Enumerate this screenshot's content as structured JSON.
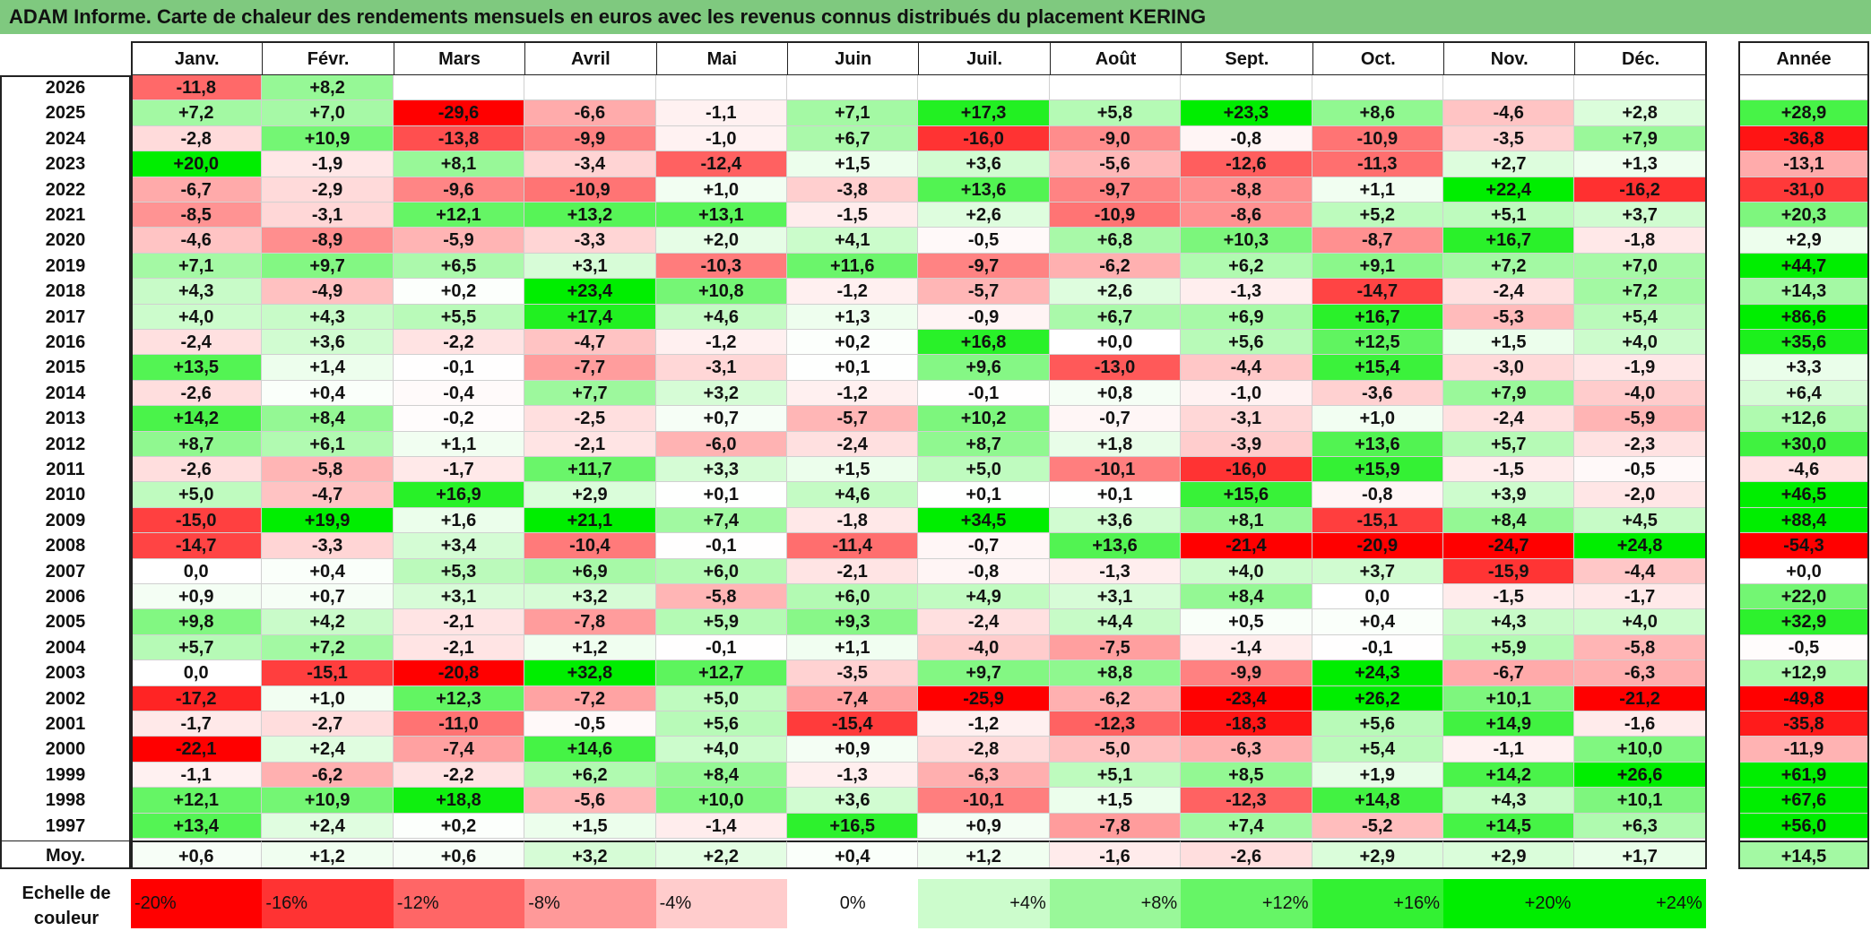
{
  "title": "ADAM Informe. Carte de chaleur des rendements mensuels en euros avec les revenus connus distribués du placement KERING",
  "chart_data": {
    "type": "heatmap",
    "months": [
      "Janv.",
      "Févr.",
      "Mars",
      "Avril",
      "Mai",
      "Juin",
      "Juil.",
      "Août",
      "Sept.",
      "Oct.",
      "Nov.",
      "Déc."
    ],
    "annual_header": "Année",
    "years": [
      "2026",
      "2025",
      "2024",
      "2023",
      "2022",
      "2021",
      "2020",
      "2019",
      "2018",
      "2017",
      "2016",
      "2015",
      "2014",
      "2013",
      "2012",
      "2011",
      "2010",
      "2009",
      "2008",
      "2007",
      "2006",
      "2005",
      "2004",
      "2003",
      "2002",
      "2001",
      "2000",
      "1999",
      "1998",
      "1997"
    ],
    "values": [
      [
        "-11,8",
        "+8,2",
        "",
        "",
        "",
        "",
        "",
        "",
        "",
        "",
        "",
        ""
      ],
      [
        "+7,2",
        "+7,0",
        "-29,6",
        "-6,6",
        "-1,1",
        "+7,1",
        "+17,3",
        "+5,8",
        "+23,3",
        "+8,6",
        "-4,6",
        "+2,8"
      ],
      [
        "-2,8",
        "+10,9",
        "-13,8",
        "-9,9",
        "-1,0",
        "+6,7",
        "-16,0",
        "-9,0",
        "-0,8",
        "-10,9",
        "-3,5",
        "+7,9"
      ],
      [
        "+20,0",
        "-1,9",
        "+8,1",
        "-3,4",
        "-12,4",
        "+1,5",
        "+3,6",
        "-5,6",
        "-12,6",
        "-11,3",
        "+2,7",
        "+1,3"
      ],
      [
        "-6,7",
        "-2,9",
        "-9,6",
        "-10,9",
        "+1,0",
        "-3,8",
        "+13,6",
        "-9,7",
        "-8,8",
        "+1,1",
        "+22,4",
        "-16,2"
      ],
      [
        "-8,5",
        "-3,1",
        "+12,1",
        "+13,2",
        "+13,1",
        "-1,5",
        "+2,6",
        "-10,9",
        "-8,6",
        "+5,2",
        "+5,1",
        "+3,7"
      ],
      [
        "-4,6",
        "-8,9",
        "-5,9",
        "-3,3",
        "+2,0",
        "+4,1",
        "-0,5",
        "+6,8",
        "+10,3",
        "-8,7",
        "+16,7",
        "-1,8"
      ],
      [
        "+7,1",
        "+9,7",
        "+6,5",
        "+3,1",
        "-10,3",
        "+11,6",
        "-9,7",
        "-6,2",
        "+6,2",
        "+9,1",
        "+7,2",
        "+7,0"
      ],
      [
        "+4,3",
        "-4,9",
        "+0,2",
        "+23,4",
        "+10,8",
        "-1,2",
        "-5,7",
        "+2,6",
        "-1,3",
        "-14,7",
        "-2,4",
        "+7,2"
      ],
      [
        "+4,0",
        "+4,3",
        "+5,5",
        "+17,4",
        "+4,6",
        "+1,3",
        "-0,9",
        "+6,7",
        "+6,9",
        "+16,7",
        "-5,3",
        "+5,4"
      ],
      [
        "-2,4",
        "+3,6",
        "-2,2",
        "-4,7",
        "-1,2",
        "+0,2",
        "+16,8",
        "+0,0",
        "+5,6",
        "+12,5",
        "+1,5",
        "+4,0"
      ],
      [
        "+13,5",
        "+1,4",
        "-0,1",
        "-7,7",
        "-3,1",
        "+0,1",
        "+9,6",
        "-13,0",
        "-4,4",
        "+15,4",
        "-3,0",
        "-1,9"
      ],
      [
        "-2,6",
        "+0,4",
        "-0,4",
        "+7,7",
        "+3,2",
        "-1,2",
        "-0,1",
        "+0,8",
        "-1,0",
        "-3,6",
        "+7,9",
        "-4,0"
      ],
      [
        "+14,2",
        "+8,4",
        "-0,2",
        "-2,5",
        "+0,7",
        "-5,7",
        "+10,2",
        "-0,7",
        "-3,1",
        "+1,0",
        "-2,4",
        "-5,9"
      ],
      [
        "+8,7",
        "+6,1",
        "+1,1",
        "-2,1",
        "-6,0",
        "-2,4",
        "+8,7",
        "+1,8",
        "-3,9",
        "+13,6",
        "+5,7",
        "-2,3"
      ],
      [
        "-2,6",
        "-5,8",
        "-1,7",
        "+11,7",
        "+3,3",
        "+1,5",
        "+5,0",
        "-10,1",
        "-16,0",
        "+15,9",
        "-1,5",
        "-0,5"
      ],
      [
        "+5,0",
        "-4,7",
        "+16,9",
        "+2,9",
        "+0,1",
        "+4,6",
        "+0,1",
        "+0,1",
        "+15,6",
        "-0,8",
        "+3,9",
        "-2,0"
      ],
      [
        "-15,0",
        "+19,9",
        "+1,6",
        "+21,1",
        "+7,4",
        "-1,8",
        "+34,5",
        "+3,6",
        "+8,1",
        "-15,1",
        "+8,4",
        "+4,5"
      ],
      [
        "-14,7",
        "-3,3",
        "+3,4",
        "-10,4",
        "-0,1",
        "-11,4",
        "-0,7",
        "+13,6",
        "-21,4",
        "-20,9",
        "-24,7",
        "+24,8"
      ],
      [
        "0,0",
        "+0,4",
        "+5,3",
        "+6,9",
        "+6,0",
        "-2,1",
        "-0,8",
        "-1,3",
        "+4,0",
        "+3,7",
        "-15,9",
        "-4,4"
      ],
      [
        "+0,9",
        "+0,7",
        "+3,1",
        "+3,2",
        "-5,8",
        "+6,0",
        "+4,9",
        "+3,1",
        "+8,4",
        "0,0",
        "-1,5",
        "-1,7"
      ],
      [
        "+9,8",
        "+4,2",
        "-2,1",
        "-7,8",
        "+5,9",
        "+9,3",
        "-2,4",
        "+4,4",
        "+0,5",
        "+0,4",
        "+4,3",
        "+4,0"
      ],
      [
        "+5,7",
        "+7,2",
        "-2,1",
        "+1,2",
        "-0,1",
        "+1,1",
        "-4,0",
        "-7,5",
        "-1,4",
        "-0,1",
        "+5,9",
        "-5,8"
      ],
      [
        "0,0",
        "-15,1",
        "-20,8",
        "+32,8",
        "+12,7",
        "-3,5",
        "+9,7",
        "+8,8",
        "-9,9",
        "+24,3",
        "-6,7",
        "-6,3"
      ],
      [
        "-17,2",
        "+1,0",
        "+12,3",
        "-7,2",
        "+5,0",
        "-7,4",
        "-25,9",
        "-6,2",
        "-23,4",
        "+26,2",
        "+10,1",
        "-21,2"
      ],
      [
        "-1,7",
        "-2,7",
        "-11,0",
        "-0,5",
        "+5,6",
        "-15,4",
        "-1,2",
        "-12,3",
        "-18,3",
        "+5,6",
        "+14,9",
        "-1,6"
      ],
      [
        "-22,1",
        "+2,4",
        "-7,4",
        "+14,6",
        "+4,0",
        "+0,9",
        "-2,8",
        "-5,0",
        "-6,3",
        "+5,4",
        "-1,1",
        "+10,0"
      ],
      [
        "-1,1",
        "-6,2",
        "-2,2",
        "+6,2",
        "+8,4",
        "-1,3",
        "-6,3",
        "+5,1",
        "+8,5",
        "+1,9",
        "+14,2",
        "+26,6"
      ],
      [
        "+12,1",
        "+10,9",
        "+18,8",
        "-5,6",
        "+10,0",
        "+3,6",
        "-10,1",
        "+1,5",
        "-12,3",
        "+14,8",
        "+4,3",
        "+10,1"
      ],
      [
        "+13,4",
        "+2,4",
        "+0,2",
        "+1,5",
        "-1,4",
        "+16,5",
        "+0,9",
        "-7,8",
        "+7,4",
        "-5,2",
        "+14,5",
        "+6,3"
      ]
    ],
    "annual": [
      "",
      "+28,9",
      "-36,8",
      "-13,1",
      "-31,0",
      "+20,3",
      "+2,9",
      "+44,7",
      "+14,3",
      "+86,6",
      "+35,6",
      "+3,3",
      "+6,4",
      "+12,6",
      "+30,0",
      "-4,6",
      "+46,5",
      "+88,4",
      "-54,3",
      "+0,0",
      "+22,0",
      "+32,9",
      "-0,5",
      "+12,9",
      "-49,8",
      "-35,8",
      "-11,9",
      "+61,9",
      "+67,6",
      "+56,0"
    ],
    "average_label": "Moy.",
    "averages": [
      "+0,6",
      "+1,2",
      "+0,6",
      "+3,2",
      "+2,2",
      "+0,4",
      "+1,2",
      "-1,6",
      "-2,6",
      "+2,9",
      "+2,9",
      "+1,7"
    ],
    "average_annual": "+14,5",
    "legend_title_line1": "Echelle de",
    "legend_title_line2": "couleur",
    "legend_steps": [
      -20,
      -16,
      -12,
      -8,
      -4,
      0,
      4,
      8,
      12,
      16,
      20,
      24
    ],
    "legend_labels": [
      "-20%",
      "-16%",
      "-12%",
      "-8%",
      "-4%",
      "0%",
      "+4%",
      "+8%",
      "+12%",
      "+16%",
      "+20%",
      "+24%"
    ],
    "colors": {
      "max_negative": "#ff0000",
      "neutral": "#ffffff",
      "max_positive": "#00ee00"
    }
  }
}
